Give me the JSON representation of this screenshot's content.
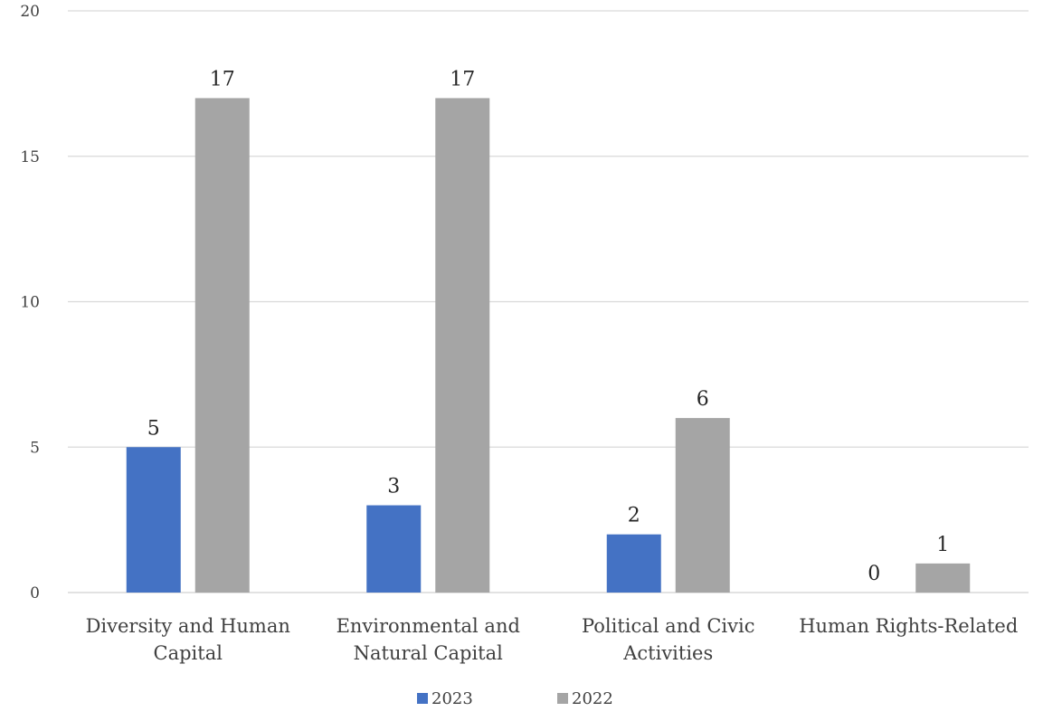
{
  "chart_data": {
    "type": "bar",
    "title": "",
    "xlabel": "",
    "ylabel": "",
    "categories": [
      [
        "Diversity and Human",
        "Capital"
      ],
      [
        "Environmental and",
        "Natural Capital"
      ],
      [
        "Political and Civic",
        "Activities"
      ],
      [
        "Human Rights-Related"
      ]
    ],
    "series": [
      {
        "name": "2023",
        "color": "#4472c4",
        "values": [
          5,
          3,
          2,
          0
        ]
      },
      {
        "name": "2022",
        "color": "#a5a5a5",
        "values": [
          17,
          17,
          6,
          1
        ]
      }
    ],
    "ylim": [
      0,
      20
    ],
    "yticks": [
      0,
      5,
      10,
      15,
      20
    ],
    "grid": true,
    "data_labels": true,
    "legend": "bottom-center"
  }
}
